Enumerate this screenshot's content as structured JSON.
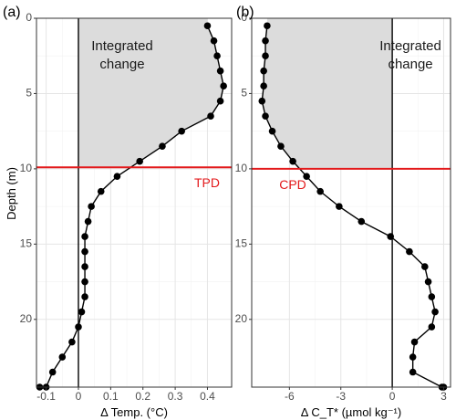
{
  "figure": {
    "y_axis_title": "Depth (m)",
    "y_ticks": [
      0,
      5,
      10,
      15,
      20
    ]
  },
  "chart_data": [
    {
      "type": "line",
      "panel_label": "(a)",
      "xlabel": "Δ Temp. (°C)",
      "ylabel": "Depth (m)",
      "xlim": [
        -0.13,
        0.475
      ],
      "ylim": [
        0,
        24.5
      ],
      "y_reversed": true,
      "x_ticks": [
        -0.1,
        0.0,
        0.1,
        0.2,
        0.3,
        0.4
      ],
      "x_tick_labels": [
        "-0.1",
        "0",
        "0.1",
        "0.2",
        "0.3",
        "0.4"
      ],
      "grid": true,
      "threshold": {
        "label": "TPD",
        "depth": 9.9,
        "color": "#e31a1c"
      },
      "annotation": [
        "Integrated",
        "change"
      ],
      "shaded_region": "between profile and zero line above threshold depth",
      "series": [
        {
          "x": [
            0.4,
            0.42,
            0.43,
            0.44,
            0.45,
            0.44,
            0.41,
            0.32,
            0.26,
            0.19,
            0.12,
            0.07,
            0.04,
            0.03,
            0.02,
            0.02,
            0.02,
            0.02,
            0.02,
            0.01,
            0.0,
            -0.02,
            -0.05,
            -0.08,
            -0.1,
            -0.12
          ],
          "y": [
            0.5,
            1.5,
            2.5,
            3.5,
            4.5,
            5.5,
            6.5,
            7.5,
            8.5,
            9.5,
            10.5,
            11.5,
            12.5,
            13.5,
            14.5,
            15.5,
            16.5,
            17.5,
            18.5,
            19.5,
            20.5,
            21.5,
            22.5,
            23.5,
            24.5,
            24.5
          ]
        }
      ]
    },
    {
      "type": "line",
      "panel_label": "(b)",
      "xlabel": "Δ C_T* (µmol kg⁻¹)",
      "ylabel": "",
      "xlim": [
        -8.2,
        3.4
      ],
      "ylim": [
        0,
        24.5
      ],
      "y_reversed": true,
      "x_ticks": [
        -6,
        -3,
        0,
        3
      ],
      "x_tick_labels": [
        "-6",
        "-3",
        "0",
        "3"
      ],
      "grid": true,
      "threshold": {
        "label": "CPD",
        "depth": 10.0,
        "color": "#e31a1c"
      },
      "annotation": [
        "Integrated",
        "change"
      ],
      "shaded_region": "between profile and zero line above threshold depth",
      "series": [
        {
          "x": [
            -7.3,
            -7.4,
            -7.4,
            -7.5,
            -7.5,
            -7.6,
            -7.4,
            -7.0,
            -6.5,
            -5.8,
            -5.0,
            -4.2,
            -3.1,
            -1.8,
            -0.1,
            1.0,
            1.9,
            2.1,
            2.3,
            2.5,
            2.3,
            1.3,
            1.2,
            1.2,
            2.9,
            3.0
          ],
          "y": [
            0.5,
            1.5,
            2.5,
            3.5,
            4.5,
            5.5,
            6.5,
            7.5,
            8.5,
            9.5,
            10.5,
            11.5,
            12.5,
            13.5,
            14.5,
            15.5,
            16.5,
            17.5,
            18.5,
            19.5,
            20.5,
            21.5,
            22.5,
            23.5,
            24.5,
            24.5
          ]
        }
      ]
    }
  ]
}
